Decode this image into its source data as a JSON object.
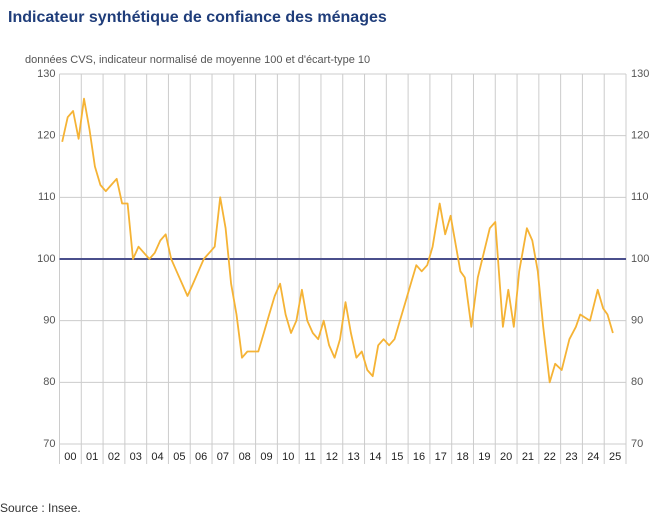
{
  "chart_data": {
    "type": "line",
    "title": "Indicateur synthétique de confiance des ménages",
    "subtitle": "données CVS, indicateur normalisé de moyenne 100 et d'écart-type 10",
    "source": "Source : Insee.",
    "xlim": [
      2000,
      2026
    ],
    "xticks": [
      {
        "value": 2000,
        "label": "00"
      },
      {
        "value": 2001,
        "label": "01"
      },
      {
        "value": 2002,
        "label": "02"
      },
      {
        "value": 2003,
        "label": "03"
      },
      {
        "value": 2004,
        "label": "04"
      },
      {
        "value": 2005,
        "label": "05"
      },
      {
        "value": 2006,
        "label": "06"
      },
      {
        "value": 2007,
        "label": "07"
      },
      {
        "value": 2008,
        "label": "08"
      },
      {
        "value": 2009,
        "label": "09"
      },
      {
        "value": 2010,
        "label": "10"
      },
      {
        "value": 2011,
        "label": "11"
      },
      {
        "value": 2012,
        "label": "12"
      },
      {
        "value": 2013,
        "label": "13"
      },
      {
        "value": 2014,
        "label": "14"
      },
      {
        "value": 2015,
        "label": "15"
      },
      {
        "value": 2016,
        "label": "16"
      },
      {
        "value": 2017,
        "label": "17"
      },
      {
        "value": 2018,
        "label": "18"
      },
      {
        "value": 2019,
        "label": "19"
      },
      {
        "value": 2020,
        "label": "20"
      },
      {
        "value": 2021,
        "label": "21"
      },
      {
        "value": 2022,
        "label": "22"
      },
      {
        "value": 2023,
        "label": "23"
      },
      {
        "value": 2024,
        "label": "24"
      },
      {
        "value": 2025,
        "label": "25"
      }
    ],
    "ylim": [
      70,
      130
    ],
    "yticks": [
      70,
      80,
      90,
      100,
      110,
      120,
      130
    ],
    "y2lim": [
      70,
      130
    ],
    "y2ticks": [
      70,
      80,
      90,
      100,
      110,
      120,
      130
    ],
    "grid": true,
    "reference_line": {
      "value": 100,
      "color": "#4a4f8c"
    },
    "series": [
      {
        "color": "#f5b335",
        "x": [
          2000.125,
          2000.375,
          2000.625,
          2000.875,
          2001.125,
          2001.375,
          2001.625,
          2001.875,
          2002.125,
          2002.375,
          2002.625,
          2002.875,
          2003.125,
          2003.375,
          2003.625,
          2003.875,
          2004.125,
          2004.375,
          2004.625,
          2004.875,
          2005.125,
          2005.375,
          2005.625,
          2005.875,
          2006.125,
          2006.375,
          2006.625,
          2006.875,
          2007.125,
          2007.375,
          2007.625,
          2007.875,
          2008.125,
          2008.375,
          2008.625,
          2008.875,
          2009.125,
          2009.375,
          2009.625,
          2009.875,
          2010.125,
          2010.375,
          2010.625,
          2010.875,
          2011.125,
          2011.375,
          2011.625,
          2011.875,
          2012.125,
          2012.375,
          2012.625,
          2012.875,
          2013.125,
          2013.375,
          2013.625,
          2013.875,
          2014.125,
          2014.375,
          2014.625,
          2014.875,
          2015.125,
          2015.375,
          2015.625,
          2015.875,
          2016.125,
          2016.375,
          2016.625,
          2016.875,
          2017.125,
          2017.45,
          2017.7,
          2017.95,
          2018.4,
          2018.6,
          2018.9,
          2019.2,
          2019.75,
          2020.0,
          2020.35,
          2020.6,
          2020.85,
          2021.1,
          2021.45,
          2021.7,
          2021.95,
          2022.2,
          2022.5,
          2022.75,
          2023.05,
          2023.4,
          2023.7,
          2023.9,
          2024.35,
          2024.7,
          2024.95,
          2025.15,
          2025.4
        ],
        "values": [
          119,
          123,
          124,
          119.5,
          126,
          121,
          115,
          112,
          111,
          112,
          113,
          109,
          109,
          100,
          102,
          101,
          100,
          101,
          103,
          104,
          100,
          98,
          96,
          94,
          96,
          98,
          100,
          101,
          102,
          110,
          105,
          96,
          91,
          84,
          85,
          85,
          85,
          88,
          91,
          94,
          96,
          91,
          88,
          90,
          95,
          90,
          88,
          87,
          90,
          86,
          84,
          87,
          93,
          88,
          84,
          85,
          82,
          81,
          86,
          87,
          86,
          87,
          90,
          93,
          96,
          99,
          98,
          99,
          102,
          109,
          104,
          107,
          98,
          97,
          89,
          97,
          105,
          106,
          89,
          95,
          89,
          98,
          105,
          103,
          98,
          89,
          80,
          83,
          82,
          87,
          89,
          91,
          90,
          95,
          92,
          91,
          88
        ]
      }
    ]
  }
}
